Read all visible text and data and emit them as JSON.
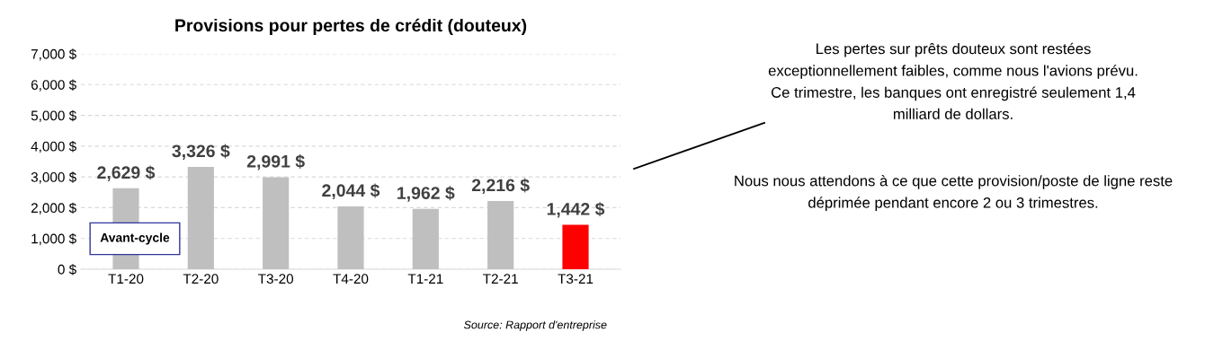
{
  "chart_data": {
    "type": "bar",
    "title": "Provisions pour pertes de crédit (douteux)",
    "categories": [
      "T1-20",
      "T2-20",
      "T3-20",
      "T4-20",
      "T1-21",
      "T2-21",
      "T3-21"
    ],
    "values": [
      2629,
      3326,
      2991,
      2044,
      1962,
      2216,
      1442
    ],
    "colors": [
      "#bfbfbf",
      "#bfbfbf",
      "#bfbfbf",
      "#bfbfbf",
      "#bfbfbf",
      "#bfbfbf",
      "#ff0000"
    ],
    "value_labels": [
      "2,629 $",
      "3,326 $",
      "2,991 $",
      "2,044 $",
      "1,962 $",
      "2,216 $",
      "1,442 $"
    ],
    "ylim": [
      0,
      7000
    ],
    "yticks": [
      {
        "value": 0,
        "label": "0 $"
      },
      {
        "value": 1000,
        "label": "1,000 $"
      },
      {
        "value": 2000,
        "label": "2,000 $"
      },
      {
        "value": 3000,
        "label": "3,000 $"
      },
      {
        "value": 4000,
        "label": "4,000 $"
      },
      {
        "value": 5000,
        "label": "5,000 $"
      },
      {
        "value": 6000,
        "label": "6,000 $"
      },
      {
        "value": 7000,
        "label": "7,000 $"
      }
    ],
    "grid": "y",
    "annotations": [
      "Avant-cycle",
      "Les pertes sur prêts douteux sont restées exceptionnellement faibles, comme nous l'avions prévu. Ce trimestre, les banques ont enregistré seulement 1,4 milliard de dollars.",
      "Nous nous attendons à ce que cette provision/poste de ligne reste déprimée pendant encore 2 ou 3 trimestres.",
      "Source: Rapport d'entreprise"
    ]
  }
}
